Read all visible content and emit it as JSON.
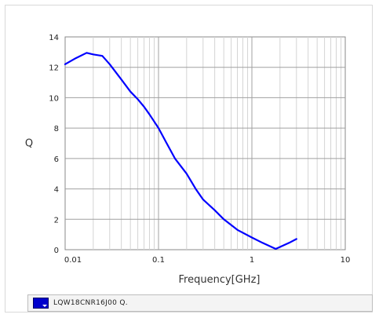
{
  "chart_data": {
    "type": "line",
    "xlabel": "Frequency[GHz]",
    "ylabel": "Q",
    "x_scale": "log",
    "xlim": [
      0.01,
      10
    ],
    "ylim": [
      0,
      14
    ],
    "x_tick_values": [
      0.01,
      0.1,
      1,
      10
    ],
    "x_tick_labels": [
      "0.01",
      "0.1",
      "1",
      "10"
    ],
    "y_tick_values": [
      0,
      2,
      4,
      6,
      8,
      10,
      12,
      14
    ],
    "y_tick_labels": [
      "0",
      "2",
      "4",
      "6",
      "8",
      "10",
      "12",
      "14"
    ],
    "grid": true,
    "legend_position": "bottom",
    "series": [
      {
        "name": "LQW18CNR16J00 Q.",
        "color": "#0000ff",
        "x": [
          0.01,
          0.013,
          0.017,
          0.02,
          0.025,
          0.03,
          0.04,
          0.05,
          0.06,
          0.07,
          0.08,
          0.1,
          0.12,
          0.15,
          0.2,
          0.25,
          0.3,
          0.4,
          0.5,
          0.7,
          1.0,
          1.3,
          1.8,
          2.5,
          3.0
        ],
        "y": [
          12.2,
          12.6,
          12.95,
          12.85,
          12.75,
          12.2,
          11.2,
          10.4,
          9.9,
          9.4,
          8.9,
          8.0,
          7.1,
          6.0,
          5.0,
          4.0,
          3.3,
          2.6,
          2.0,
          1.3,
          0.8,
          0.45,
          0.05,
          0.45,
          0.7
        ]
      }
    ]
  },
  "legend": {
    "label": "LQW18CNR16J00 Q.",
    "swatch_color": "#0000cc"
  }
}
